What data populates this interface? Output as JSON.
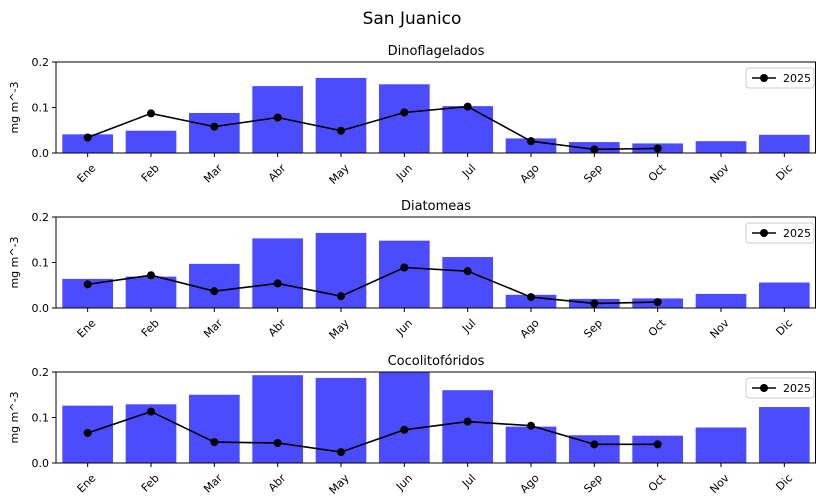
{
  "figure": {
    "title": "San Juanico"
  },
  "chart_data": [
    {
      "type": "bar",
      "title": "Dinoflagelados",
      "ylabel": "mg m^-3",
      "ylim": [
        0,
        0.2
      ],
      "yticks": [
        "0.0",
        "0.1",
        "0.2"
      ],
      "categories": [
        "Ene",
        "Feb",
        "Mar",
        "Abr",
        "May",
        "Jun",
        "Jul",
        "Ago",
        "Sep",
        "Oct",
        "Nov",
        "Dic"
      ],
      "values": [
        0.041,
        0.049,
        0.088,
        0.147,
        0.165,
        0.151,
        0.103,
        0.032,
        0.024,
        0.021,
        0.026,
        0.04
      ],
      "line": {
        "name": "2025",
        "values": [
          0.034,
          0.087,
          0.058,
          0.078,
          0.049,
          0.089,
          0.102,
          0.026,
          0.008,
          0.01,
          null,
          null
        ]
      },
      "legend": "top-right",
      "colors": {
        "bar": "#4b4bff",
        "line": "#000000"
      }
    },
    {
      "type": "bar",
      "title": "Diatomeas",
      "ylabel": "mg m^-3",
      "ylim": [
        0,
        0.2
      ],
      "yticks": [
        "0.0",
        "0.1",
        "0.2"
      ],
      "categories": [
        "Ene",
        "Feb",
        "Mar",
        "Abr",
        "May",
        "Jun",
        "Jul",
        "Ago",
        "Sep",
        "Oct",
        "Nov",
        "Dic"
      ],
      "values": [
        0.064,
        0.069,
        0.097,
        0.153,
        0.165,
        0.148,
        0.112,
        0.029,
        0.02,
        0.021,
        0.031,
        0.056
      ],
      "line": {
        "name": "2025",
        "values": [
          0.052,
          0.072,
          0.037,
          0.054,
          0.026,
          0.089,
          0.081,
          0.024,
          0.01,
          0.013,
          null,
          null
        ]
      },
      "legend": "top-right",
      "colors": {
        "bar": "#4b4bff",
        "line": "#000000"
      }
    },
    {
      "type": "bar",
      "title": "Cocolitofóridos",
      "ylabel": "mg m^-3",
      "ylim": [
        0,
        0.2
      ],
      "yticks": [
        "0.0",
        "0.1",
        "0.2"
      ],
      "categories": [
        "Ene",
        "Feb",
        "Mar",
        "Abr",
        "May",
        "Jun",
        "Jul",
        "Ago",
        "Sep",
        "Oct",
        "Nov",
        "Dic"
      ],
      "values": [
        0.126,
        0.129,
        0.15,
        0.193,
        0.187,
        0.201,
        0.16,
        0.08,
        0.061,
        0.06,
        0.078,
        0.123
      ],
      "line": {
        "name": "2025",
        "values": [
          0.066,
          0.113,
          0.046,
          0.044,
          0.024,
          0.073,
          0.091,
          0.082,
          0.041,
          0.041,
          null,
          null
        ]
      },
      "legend": "top-right",
      "colors": {
        "bar": "#4b4bff",
        "line": "#000000"
      }
    }
  ]
}
